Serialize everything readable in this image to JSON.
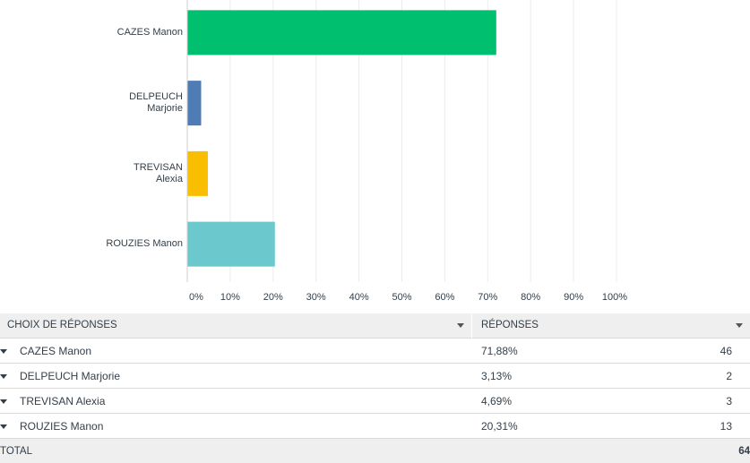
{
  "chart_data": {
    "type": "bar",
    "orientation": "horizontal",
    "categories": [
      "CAZES Manon",
      "DELPEUCH Marjorie",
      "TREVISAN Alexia",
      "ROUZIES Manon"
    ],
    "category_lines": [
      [
        "CAZES Manon"
      ],
      [
        "DELPEUCH",
        "Marjorie"
      ],
      [
        "TREVISAN",
        "Alexia"
      ],
      [
        "ROUZIES Manon"
      ]
    ],
    "values": [
      71.88,
      3.13,
      4.69,
      20.31
    ],
    "colors": [
      "#00bf6f",
      "#507cb6",
      "#f9be00",
      "#6bc8cd"
    ],
    "xlim": [
      0,
      100
    ],
    "ticks": [
      0,
      10,
      20,
      30,
      40,
      50,
      60,
      70,
      80,
      90,
      100
    ],
    "tick_labels": [
      "0%",
      "10%",
      "20%",
      "30%",
      "40%",
      "50%",
      "60%",
      "70%",
      "80%",
      "90%",
      "100%"
    ],
    "grid": true,
    "legend": "none"
  },
  "table": {
    "col_choice": "CHOIX DE RÉPONSES",
    "col_responses": "RÉPONSES",
    "rows": [
      {
        "choice": "CAZES Manon",
        "pct": "71,88%",
        "count": "46"
      },
      {
        "choice": "DELPEUCH Marjorie",
        "pct": "3,13%",
        "count": "2"
      },
      {
        "choice": "TREVISAN Alexia",
        "pct": "4,69%",
        "count": "3"
      },
      {
        "choice": "ROUZIES Manon",
        "pct": "20,31%",
        "count": "13"
      }
    ],
    "total_label": "TOTAL",
    "total_value": "64"
  }
}
